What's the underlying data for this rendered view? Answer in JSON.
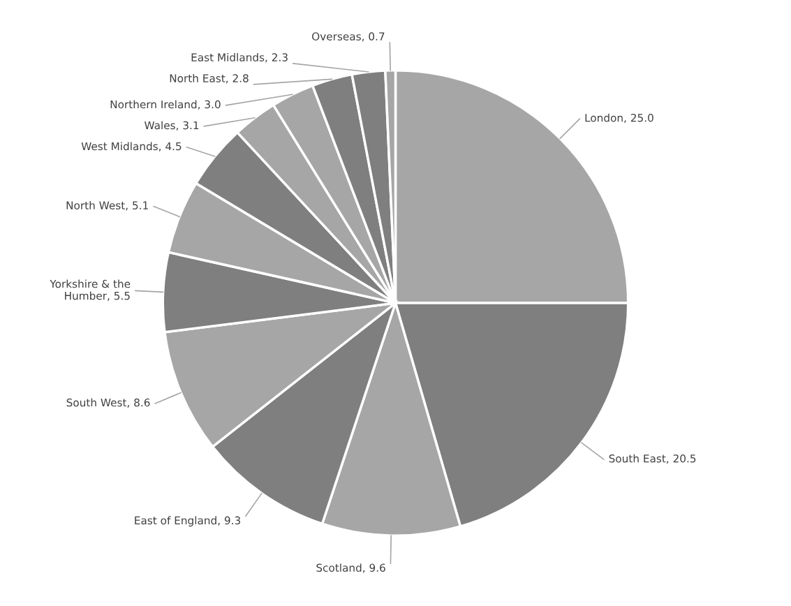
{
  "chart_data": {
    "type": "pie",
    "categories": [
      "London",
      "South East",
      "Scotland",
      "East of England",
      "South West",
      "Yorkshire & the Humber",
      "North West",
      "West Midlands",
      "Wales",
      "Northern Ireland",
      "North East",
      "East Midlands",
      "Overseas"
    ],
    "values": [
      25.0,
      20.5,
      9.6,
      9.3,
      8.6,
      5.5,
      5.1,
      4.5,
      3.1,
      3.0,
      2.8,
      2.3,
      0.7
    ],
    "value_labels": [
      "25.0",
      "20.5",
      "9.6",
      "9.3",
      "8.6",
      "5.5",
      "5.1",
      "4.5",
      "3.1",
      "3.0",
      "2.8",
      "2.3",
      "0.7"
    ],
    "colors": [
      "#a6a6a6",
      "#7f7f7f",
      "#a6a6a6",
      "#7f7f7f",
      "#a6a6a6",
      "#7f7f7f",
      "#a6a6a6",
      "#7f7f7f",
      "#a6a6a6",
      "#a6a6a6",
      "#7f7f7f",
      "#7f7f7f",
      "#a6a6a6"
    ]
  }
}
